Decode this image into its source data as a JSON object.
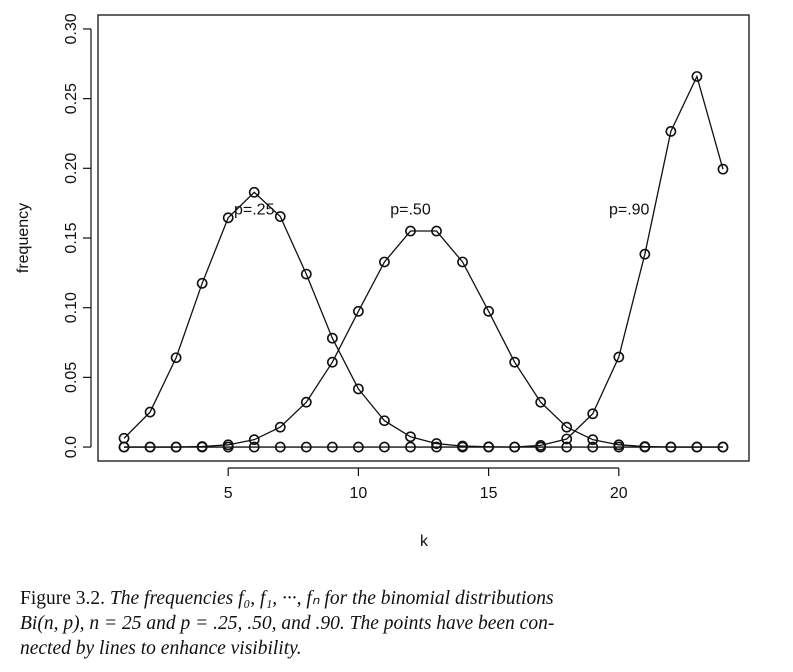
{
  "chart_data": {
    "type": "line",
    "xlabel": "k",
    "ylabel": "frequency",
    "xlim": [
      0,
      25
    ],
    "ylim": [
      -0.01,
      0.31
    ],
    "x_ticks": [
      5,
      10,
      15,
      20
    ],
    "y_ticks": [
      0.0,
      0.05,
      0.1,
      0.15,
      0.2,
      0.25,
      0.3
    ],
    "y_tick_labels": [
      "0.0",
      "0.05",
      "0.10",
      "0.15",
      "0.20",
      "0.25",
      "0.30"
    ],
    "x": [
      1,
      2,
      3,
      4,
      5,
      6,
      7,
      8,
      9,
      10,
      11,
      12,
      13,
      14,
      15,
      16,
      17,
      18,
      19,
      20,
      21,
      22,
      23,
      24
    ],
    "series": [
      {
        "name": "p=.25",
        "label_pos": [
          6,
          0.167
        ],
        "values": [
          0.0063,
          0.0251,
          0.0641,
          0.1175,
          0.1645,
          0.1828,
          0.1654,
          0.1241,
          0.0781,
          0.0417,
          0.0189,
          0.0074,
          0.0025,
          0.0007,
          0.0002,
          0.0,
          0.0,
          0.0,
          0.0,
          0.0,
          0.0,
          0.0,
          0.0,
          0.0
        ]
      },
      {
        "name": "p=.50",
        "label_pos": [
          12,
          0.167
        ],
        "values": [
          0.0,
          0.0,
          0.0,
          0.0004,
          0.0016,
          0.0053,
          0.0143,
          0.0322,
          0.0609,
          0.0974,
          0.1328,
          0.155,
          0.155,
          0.1328,
          0.0974,
          0.0609,
          0.0322,
          0.0143,
          0.0053,
          0.0016,
          0.0004,
          0.0,
          0.0,
          0.0
        ]
      },
      {
        "name": "p=.90",
        "label_pos": [
          20.4,
          0.167
        ],
        "values": [
          0.0,
          0.0,
          0.0,
          0.0,
          0.0,
          0.0,
          0.0,
          0.0,
          0.0,
          0.0,
          0.0,
          0.0,
          0.0,
          0.0,
          0.0,
          0.0,
          0.0012,
          0.0058,
          0.0239,
          0.0646,
          0.1384,
          0.2265,
          0.2659,
          0.1994
        ]
      }
    ]
  },
  "caption": {
    "prefix": "Figure 3.2. ",
    "line1": "The frequencies f₀, f₁, ···, fₙ for the binomial distributions",
    "line2": "Bi(n, p), n = 25 and p = .25, .50, and .90. The points have been con-",
    "line3": "nected by lines to enhance visibility."
  }
}
